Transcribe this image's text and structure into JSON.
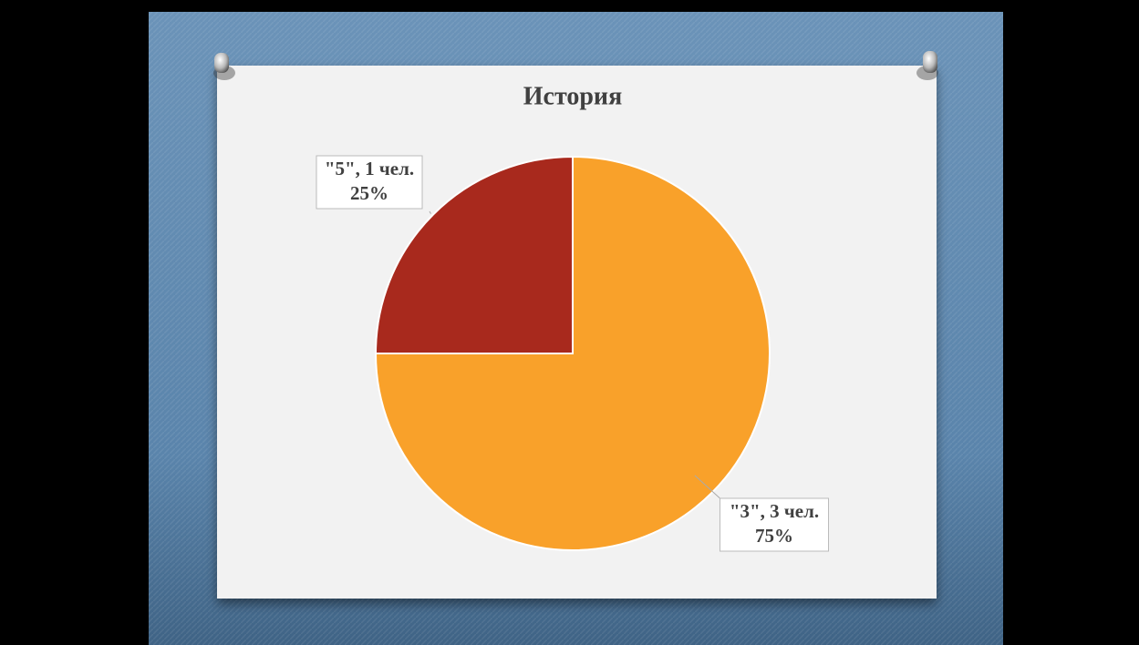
{
  "chart_data": {
    "type": "pie",
    "title": "История",
    "categories": [
      "\"3\", 3 чел.",
      "\"5\", 1 чел."
    ],
    "values": [
      75,
      25
    ],
    "value_labels": [
      "75%",
      "25%"
    ],
    "colors": [
      "#f9a12a",
      "#a8291d"
    ]
  }
}
